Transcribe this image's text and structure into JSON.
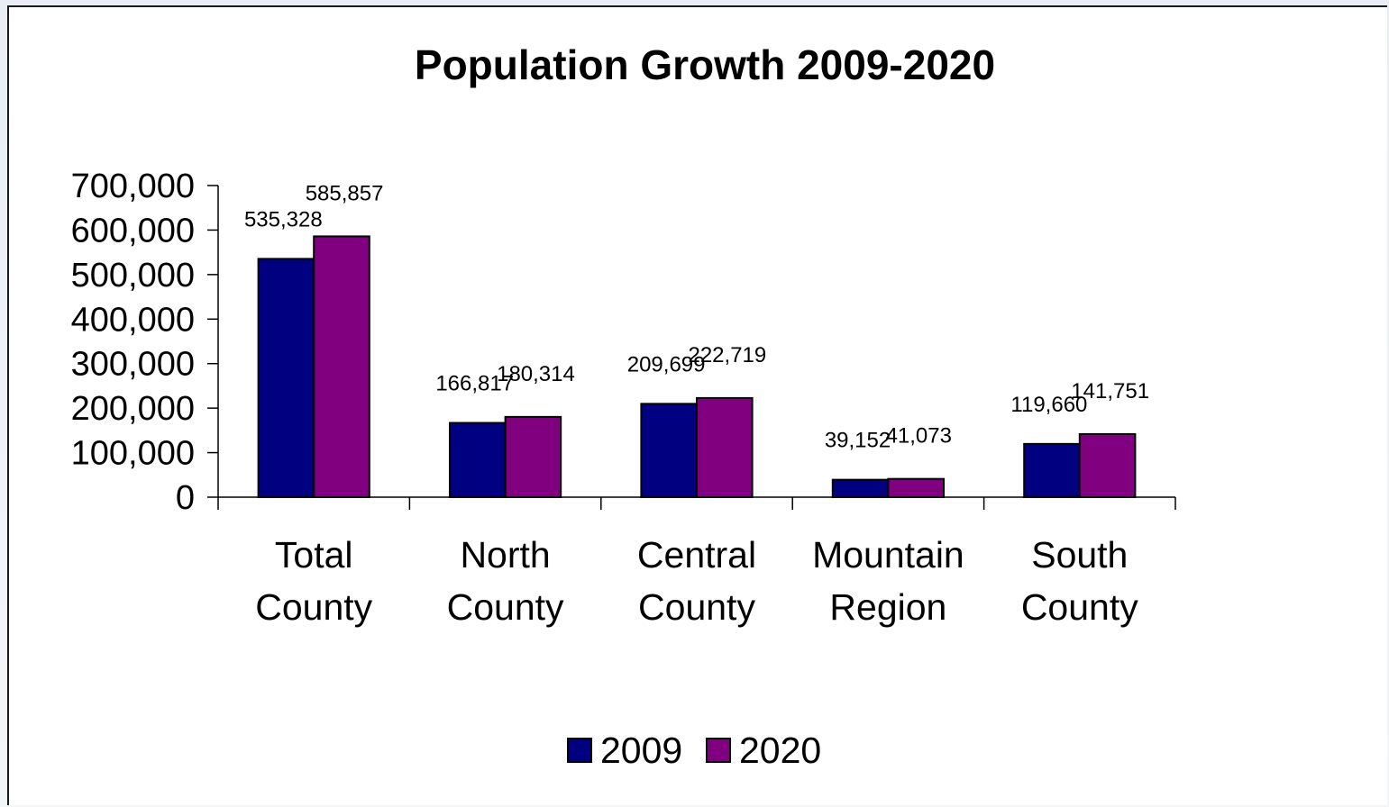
{
  "chart_data": {
    "type": "bar",
    "title": "Population Growth 2009-2020",
    "categories": [
      [
        "Total",
        "County"
      ],
      [
        "North",
        "County"
      ],
      [
        "Central",
        "County"
      ],
      [
        "Mountain",
        "Region"
      ],
      [
        "South",
        "County"
      ]
    ],
    "series": [
      {
        "name": "2009",
        "color": "#000080",
        "values": [
          535328,
          166817,
          209699,
          39152,
          119660
        ],
        "labels": [
          "535,328",
          "166,817",
          "209,699",
          "39,152",
          "119,660"
        ]
      },
      {
        "name": "2020",
        "color": "#800080",
        "values": [
          585857,
          180314,
          222719,
          41073,
          141751
        ],
        "labels": [
          "585,857",
          "180,314",
          "222,719",
          "41,073",
          "141,751"
        ]
      }
    ],
    "ylim": [
      0,
      700000
    ],
    "yticks": [
      "0",
      "100,000",
      "200,000",
      "300,000",
      "400,000",
      "500,000",
      "600,000",
      "700,000"
    ],
    "grid": false,
    "legend": "bottom"
  }
}
